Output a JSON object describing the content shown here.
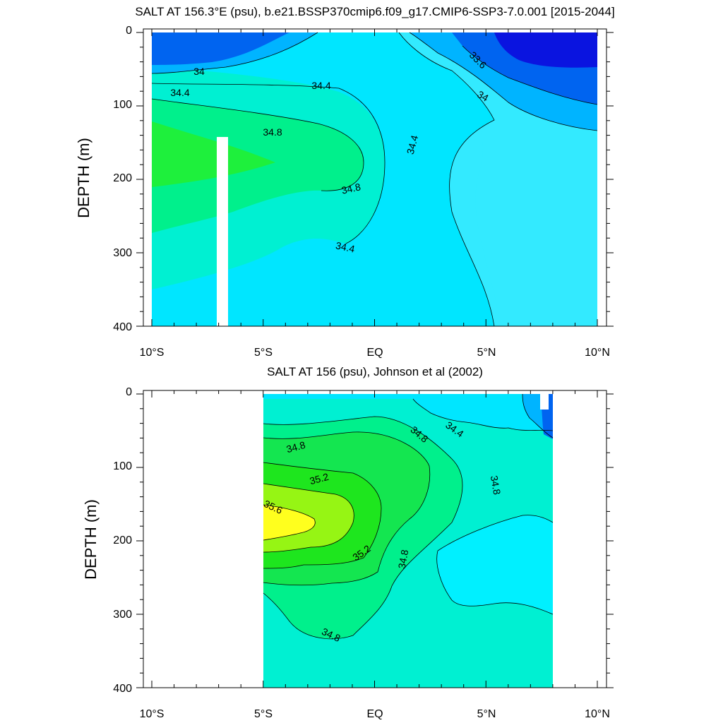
{
  "chart_data": [
    {
      "type": "heatmap",
      "title": "SALT AT 156.3°E (psu), b.e21.BSSP370cmip6.f09_g17.CMIP6-SSP3-7.0.001 [2015-2044]",
      "ylabel": "DEPTH (m)",
      "xlabel": "",
      "xlim": [
        -10,
        10
      ],
      "ylim": [
        400,
        0
      ],
      "x_tick_labels": [
        "10°S",
        "5°S",
        "EQ",
        "5°N",
        "10°N"
      ],
      "y_tick_labels": [
        "0",
        "100",
        "200",
        "300",
        "400"
      ],
      "contour_labels": [
        "34",
        "34.4",
        "34.4",
        "34.8",
        "34.8",
        "34.4",
        "34.4",
        "33.6",
        "34"
      ],
      "colors": {
        "s_lt_33_6": "#0a14e0",
        "s_33_6_34": "#0064f0",
        "s_34_34_2": "#00b4ff",
        "s_34_2_34_4": "#00e6ff",
        "s_34_4_34_6": "#33eaff",
        "s_34_6_34_8": "#00f0d2",
        "s_34_8_35": "#00f08c",
        "s_gt_35": "#1ef03c"
      }
    },
    {
      "type": "heatmap",
      "title": "SALT AT 156 (psu), Johnson et al (2002)",
      "ylabel": "DEPTH (m)",
      "xlabel": "",
      "xlim": [
        -10,
        10
      ],
      "ylim": [
        400,
        0
      ],
      "data_xrange": [
        -5,
        8
      ],
      "x_tick_labels": [
        "10°S",
        "5°S",
        "EQ",
        "5°N",
        "10°N"
      ],
      "y_tick_labels": [
        "0",
        "100",
        "200",
        "300",
        "400"
      ],
      "contour_labels": [
        "34.8",
        "34.8",
        "34.4",
        "34.8",
        "35.2",
        "35.6",
        "35.2",
        "34.8",
        "34.8"
      ],
      "colors": {
        "s_34_2_34_4": "#00b4ff",
        "s_34_4_34_6": "#00e6ff",
        "s_34_6_34_8": "#00f0d2",
        "s_34_8_35": "#00f08c",
        "s_35_35_2": "#14e650",
        "s_35_2_35_4": "#1ee61e",
        "s_35_4_35_6": "#96f514",
        "s_gt_35_6": "#ffff1e"
      }
    }
  ]
}
